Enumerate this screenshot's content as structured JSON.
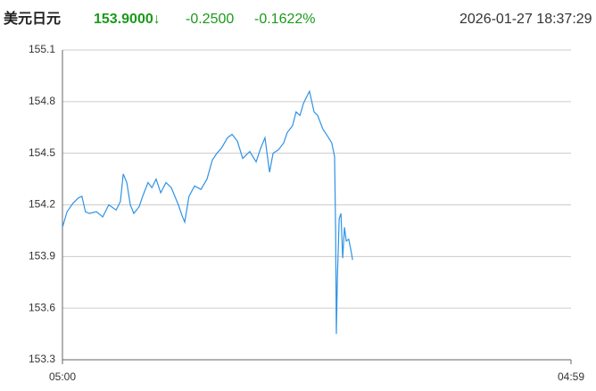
{
  "header": {
    "name": "美元日元",
    "price": "153.9000↓",
    "change": "-0.2500",
    "change_pct": "-0.1622%",
    "datetime": "2026-01-27 18:37:29"
  },
  "chart_data": {
    "type": "line",
    "x": [
      0,
      13,
      30,
      45,
      55,
      65,
      76,
      96,
      114,
      131,
      152,
      164,
      172,
      182,
      192,
      202,
      217,
      227,
      242,
      253,
      265,
      278,
      293,
      308,
      318,
      328,
      338,
      346,
      358,
      374,
      392,
      409,
      424,
      437,
      450,
      467,
      480,
      495,
      510,
      530,
      548,
      561,
      573,
      586,
      596,
      611,
      626,
      636,
      651,
      661,
      672,
      682,
      689,
      699,
      712,
      722,
      737,
      750,
      762,
      770,
      773,
      775,
      778,
      783,
      788,
      793,
      798,
      803,
      810,
      816,
      821
    ],
    "series": [
      {
        "color": "#2f93e6",
        "values": [
          154.07,
          154.16,
          154.21,
          154.24,
          154.25,
          154.16,
          154.15,
          154.16,
          154.13,
          154.2,
          154.17,
          154.22,
          154.38,
          154.33,
          154.2,
          154.15,
          154.19,
          154.25,
          154.33,
          154.3,
          154.35,
          154.27,
          154.33,
          154.3,
          154.25,
          154.2,
          154.14,
          154.1,
          154.25,
          154.31,
          154.29,
          154.35,
          154.46,
          154.5,
          154.53,
          154.59,
          154.61,
          154.57,
          154.47,
          154.51,
          154.45,
          154.53,
          154.59,
          154.39,
          154.5,
          154.52,
          154.56,
          154.62,
          154.66,
          154.74,
          154.72,
          154.79,
          154.82,
          154.86,
          154.74,
          154.72,
          154.64,
          154.6,
          154.56,
          154.48,
          154.04,
          153.45,
          153.78,
          154.12,
          154.15,
          153.89,
          154.07,
          153.99,
          154.0,
          153.94,
          153.88
        ]
      }
    ],
    "xlim": [
      0,
      1439
    ],
    "xticks": [
      {
        "value": 0,
        "label": "05:00"
      },
      {
        "value": 1439,
        "label": "04:59"
      }
    ],
    "ylim": [
      153.3,
      155.1
    ],
    "yticks": [
      153.3,
      153.6,
      153.9,
      154.2,
      154.5,
      154.8,
      155.1
    ],
    "grid": true
  }
}
